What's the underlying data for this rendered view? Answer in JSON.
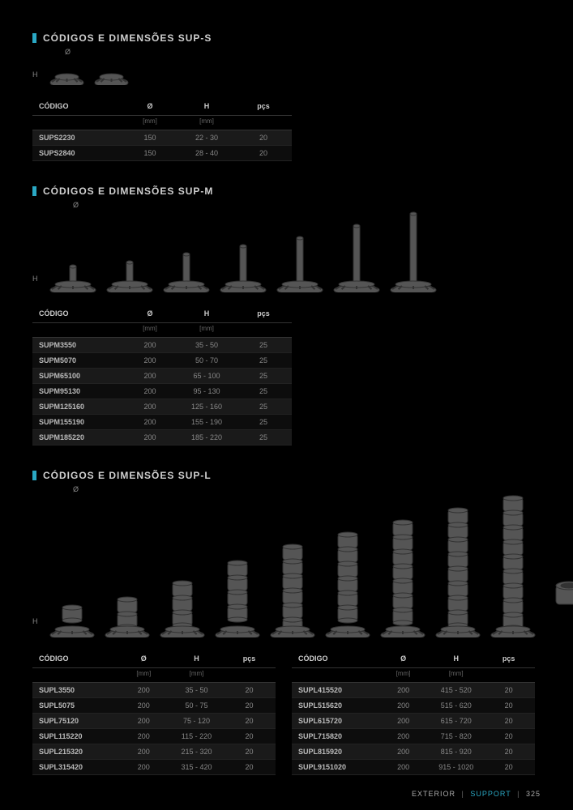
{
  "accent_color": "#2aa8c4",
  "background_color": "#000000",
  "sections": {
    "s": {
      "title": "CÓDIGOS E DIMENSÕES SUP-S",
      "columns": {
        "c1": "CÓDIGO",
        "c2": "Ø",
        "c3": "H",
        "c4": "pçs"
      },
      "units": {
        "c2": "[mm]",
        "c3": "[mm]"
      },
      "rows": [
        {
          "code": "SUPS2230",
          "d": "150",
          "h": "22 - 30",
          "p": "20"
        },
        {
          "code": "SUPS2840",
          "d": "150",
          "h": "28 - 40",
          "p": "20"
        }
      ]
    },
    "m": {
      "title": "CÓDIGOS E DIMENSÕES SUP-M",
      "columns": {
        "c1": "CÓDIGO",
        "c2": "Ø",
        "c3": "H",
        "c4": "pçs"
      },
      "units": {
        "c2": "[mm]",
        "c3": "[mm]"
      },
      "rows": [
        {
          "code": "SUPM3550",
          "d": "200",
          "h": "35 - 50",
          "p": "25"
        },
        {
          "code": "SUPM5070",
          "d": "200",
          "h": "50 - 70",
          "p": "25"
        },
        {
          "code": "SUPM65100",
          "d": "200",
          "h": "65 - 100",
          "p": "25"
        },
        {
          "code": "SUPM95130",
          "d": "200",
          "h": "95 - 130",
          "p": "25"
        },
        {
          "code": "SUPM125160",
          "d": "200",
          "h": "125 - 160",
          "p": "25"
        },
        {
          "code": "SUPM155190",
          "d": "200",
          "h": "155 - 190",
          "p": "25"
        },
        {
          "code": "SUPM185220",
          "d": "200",
          "h": "185 - 220",
          "p": "25"
        }
      ]
    },
    "l": {
      "title": "CÓDIGOS E DIMENSÕES SUP-L",
      "columns": {
        "c1": "CÓDIGO",
        "c2": "Ø",
        "c3": "H",
        "c4": "pçs"
      },
      "units": {
        "c2": "[mm]",
        "c3": "[mm]"
      },
      "left_rows": [
        {
          "code": "SUPL3550",
          "d": "200",
          "h": "35 - 50",
          "p": "20"
        },
        {
          "code": "SUPL5075",
          "d": "200",
          "h": "50 - 75",
          "p": "20"
        },
        {
          "code": "SUPL75120",
          "d": "200",
          "h": "75 - 120",
          "p": "20"
        },
        {
          "code": "SUPL115220",
          "d": "200",
          "h": "115 - 220",
          "p": "20"
        },
        {
          "code": "SUPL215320",
          "d": "200",
          "h": "215 - 320",
          "p": "20"
        },
        {
          "code": "SUPL315420",
          "d": "200",
          "h": "315 - 420",
          "p": "20"
        }
      ],
      "right_rows": [
        {
          "code": "SUPL415520",
          "d": "200",
          "h": "415 - 520",
          "p": "20"
        },
        {
          "code": "SUPL515620",
          "d": "200",
          "h": "515 - 620",
          "p": "20"
        },
        {
          "code": "SUPL615720",
          "d": "200",
          "h": "615 - 720",
          "p": "20"
        },
        {
          "code": "SUPL715820",
          "d": "200",
          "h": "715 - 820",
          "p": "20"
        },
        {
          "code": "SUPL815920",
          "d": "200",
          "h": "815 - 920",
          "p": "20"
        },
        {
          "code": "SUPL9151020",
          "d": "200",
          "h": "915 - 1020",
          "p": "20"
        }
      ]
    }
  },
  "labels": {
    "h": "H",
    "d": "Ø"
  },
  "footer": {
    "left": "EXTERIOR",
    "mid": "SUPPORT",
    "page": "325"
  },
  "diagrams": {
    "s_heights": [
      18,
      18
    ],
    "m_heights": [
      20,
      25,
      35,
      45,
      55,
      70,
      85
    ],
    "l_heights": [
      25,
      35,
      55,
      80,
      100,
      115,
      130,
      145,
      160
    ],
    "ring_height": 35,
    "pedestal_color": "#555555",
    "pedestal_stroke": "#333333"
  }
}
